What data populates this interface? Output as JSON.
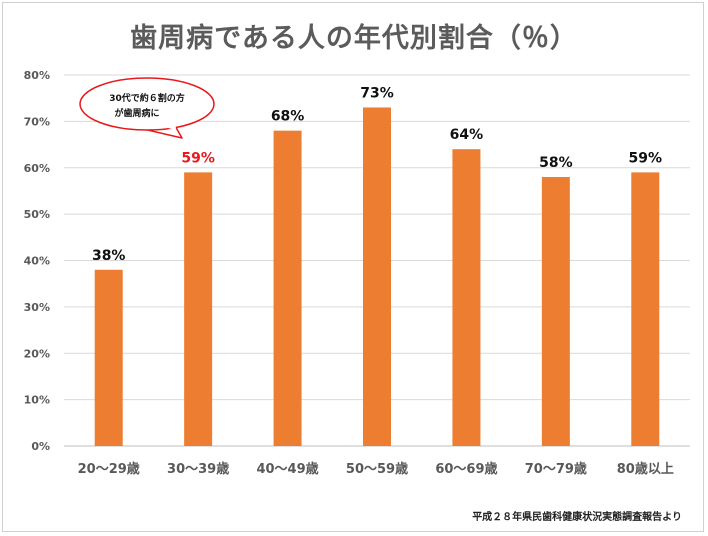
{
  "chart_data": {
    "type": "bar",
    "title": "歯周病である人の年代別割合（％）",
    "categories": [
      "20～29歳",
      "30～39歳",
      "40～49歳",
      "50～59歳",
      "60～69歳",
      "70～79歳",
      "80歳以上"
    ],
    "values": [
      38,
      59,
      68,
      73,
      64,
      58,
      59
    ],
    "data_labels": [
      "38%",
      "59%",
      "68%",
      "73%",
      "64%",
      "58%",
      "59%"
    ],
    "highlight_index": 1,
    "highlight_color": "#e8191c",
    "bar_color": "#ed7d31",
    "ylim": [
      0,
      80
    ],
    "yticks": [
      "0%",
      "10%",
      "20%",
      "30%",
      "40%",
      "50%",
      "60%",
      "70%",
      "80%"
    ],
    "grid": true,
    "xlabel": "",
    "ylabel": "",
    "annotation": {
      "lines": [
        "30代で約６割の方",
        "が歯周病に"
      ],
      "target_index": 1,
      "style": "speech-bubble",
      "color": "#e8191c"
    },
    "source": "平成２８年県民歯科健康状況実態調査報告より"
  }
}
